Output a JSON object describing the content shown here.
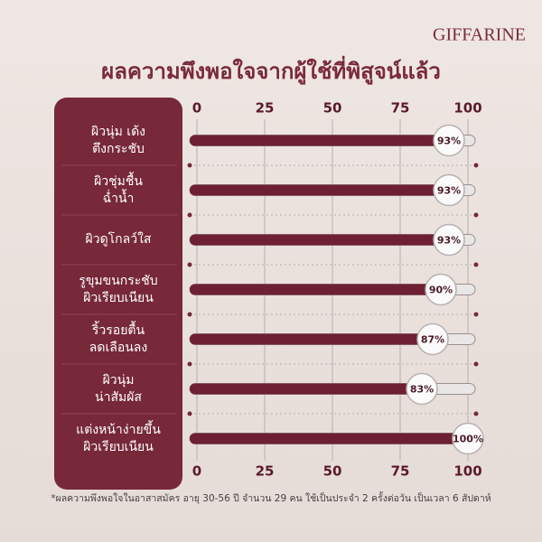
{
  "brand": "GIFFARINE",
  "footnote": "*ผลความพึงพอใจในอาสาสมัคร อายุ 30-56 ปี จำนวน 29 คน ใช้เป็นประจำ 2 ครั้งต่อวัน เป็นเวลา 6 สัปดาห์",
  "chart_data": {
    "type": "bar",
    "orientation": "horizontal",
    "title": "ผลความพึงพอใจจากผู้ใช้ที่พิสูจน์แล้ว",
    "categories": [
      "ผิวนุ่ม เด้ง\nตึงกระชับ",
      "ผิวชุ่มชื้น\nฉ่ำน้ำ",
      "ผิวดูโกลว์ใส",
      "รูขุมขนกระชับ\nผิวเรียบเนียน",
      "ริ้วรอยตื้น\nลดเลือนลง",
      "ผิวนุ่ม\nน่าสัมผัส",
      "แต่งหน้าง่ายขึ้น\nผิวเรียบเนียน"
    ],
    "values": [
      93,
      93,
      93,
      90,
      87,
      83,
      100
    ],
    "value_labels": [
      "93%",
      "93%",
      "93%",
      "90%",
      "87%",
      "83%",
      "100%"
    ],
    "color": "#6e1f33",
    "xlim": [
      0,
      100
    ],
    "xticks": [
      0,
      25,
      50,
      75,
      100
    ],
    "grid": true
  }
}
